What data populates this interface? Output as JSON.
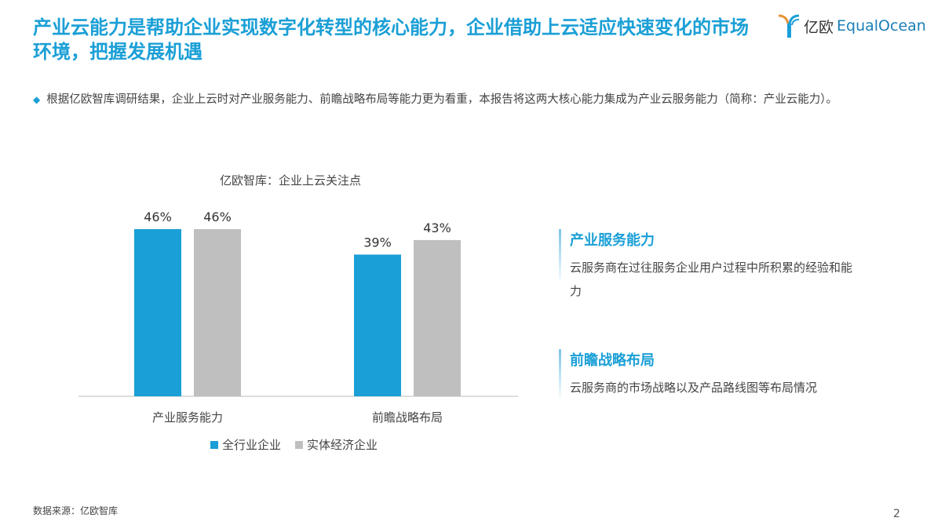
{
  "title": "产业云能力是帮助企业实现数字化转型的核心能力，企业借助上云适应快速变化的市场环境，把握发展机遇",
  "logo": {
    "cn": "亿欧",
    "en": "EqualOcean"
  },
  "bullet": "根据亿欧智库调研结果，企业上云时对产业服务能力、前瞻战略布局等能力更为看重，本报告将这两大核心能力集成为产业云服务能力（简称：产业云能力）。",
  "chart_data": {
    "type": "bar",
    "title": "亿欧智库：企业上云关注点",
    "categories": [
      "产业服务能力",
      "前瞻战略布局"
    ],
    "series": [
      {
        "name": "全行业企业",
        "values": [
          46,
          39
        ],
        "labels": [
          "46%",
          "39%"
        ],
        "color": "#1a9fd6"
      },
      {
        "name": "实体经济企业",
        "values": [
          46,
          43
        ],
        "labels": [
          "46%",
          "43%"
        ],
        "color": "#bfbfbf"
      }
    ],
    "ylim": [
      0,
      50
    ],
    "legend": "bottom",
    "grid": false
  },
  "items": [
    {
      "title": "产业服务能力",
      "desc": "云服务商在过往服务企业用户过程中所积累的经验和能力"
    },
    {
      "title": "前瞻战略布局",
      "desc": "云服务商的市场战略以及产品路线图等布局情况"
    }
  ],
  "source": "数据来源：亿欧智库",
  "page": "2"
}
